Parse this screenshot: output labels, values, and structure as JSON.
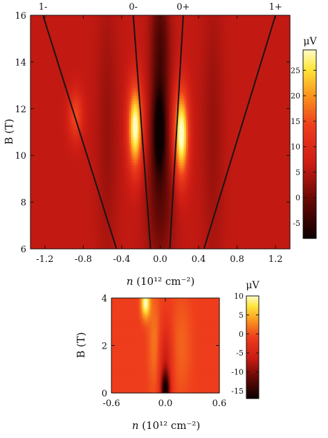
{
  "chart_data": [
    {
      "type": "heatmap",
      "title": "",
      "xlabel_var": "n",
      "xlabel_unit": "(10¹² cm⁻²)",
      "ylabel": "B (T)",
      "xlim": [
        -1.35,
        1.35
      ],
      "ylim": [
        6,
        16
      ],
      "xticks": [
        -1.2,
        -0.8,
        -0.4,
        0.0,
        0.4,
        0.8,
        1.2
      ],
      "xtick_labels": [
        "-1.2",
        "-0.8",
        "-0.4",
        "0.0",
        "0.4",
        "0.8",
        "1.2"
      ],
      "yticks": [
        6,
        8,
        10,
        12,
        14,
        16
      ],
      "ytick_labels": [
        "6",
        "8",
        "10",
        "12",
        "14",
        "16"
      ],
      "colorbar": {
        "unit": "μV",
        "range": [
          -8,
          29
        ],
        "ticks": [
          -5,
          0,
          5,
          10,
          15,
          20,
          25
        ],
        "tick_labels": [
          "-5",
          "0",
          "5",
          "10",
          "15",
          "20",
          "25"
        ]
      },
      "background_value": 6,
      "features": [
        {
          "x": -0.26,
          "y": 11.2,
          "amp": 24,
          "sx": 0.05,
          "sy": 1.2
        },
        {
          "x": 0.22,
          "y": 10.9,
          "amp": 25,
          "sx": 0.05,
          "sy": 1.25
        },
        {
          "x": -0.88,
          "y": 11.7,
          "amp": 9,
          "sx": 0.05,
          "sy": 0.7
        },
        {
          "x": -0.01,
          "y": 11.0,
          "amp": -13,
          "sx": 0.05,
          "sy": 1.3
        },
        {
          "x": 0.0,
          "y": 14.5,
          "amp": -9,
          "sx": 0.07,
          "sy": 2.2
        },
        {
          "x": 0.0,
          "y": 8.0,
          "amp": -7,
          "sx": 0.1,
          "sy": 2.0
        },
        {
          "x": -0.55,
          "y": 11.0,
          "amp": -3,
          "sx": 0.08,
          "sy": 4.0
        },
        {
          "x": 0.55,
          "y": 11.0,
          "amp": -3,
          "sx": 0.08,
          "sy": 4.0
        }
      ],
      "lines": [
        {
          "label": "1-",
          "from": [
            -0.455,
            6
          ],
          "to": [
            -1.22,
            16
          ]
        },
        {
          "label": "0-",
          "from": [
            -0.1,
            6
          ],
          "to": [
            -0.28,
            16
          ]
        },
        {
          "label": "0+",
          "from": [
            0.1,
            6
          ],
          "to": [
            0.24,
            16
          ]
        },
        {
          "label": "1+",
          "from": [
            0.455,
            6
          ],
          "to": [
            1.2,
            16
          ]
        }
      ]
    },
    {
      "type": "heatmap",
      "title": "",
      "xlabel_var": "n",
      "xlabel_unit": "(10¹² cm⁻²)",
      "ylabel": "B (T)",
      "xlim": [
        -0.6,
        0.6
      ],
      "ylim": [
        0,
        4
      ],
      "xticks": [
        -0.6,
        0.0,
        0.6
      ],
      "xtick_labels": [
        "-0.6",
        "0.0",
        "0.6"
      ],
      "yticks": [
        0,
        2,
        4
      ],
      "ytick_labels": [
        "0",
        "2",
        "4"
      ],
      "colorbar": {
        "unit": "μV",
        "range": [
          -17,
          10
        ],
        "ticks": [
          -15,
          -10,
          -5,
          0,
          5,
          10
        ],
        "tick_labels": [
          "-15",
          "-10",
          "-5",
          "0",
          "5",
          "10"
        ]
      },
      "background_value": -1,
      "features": [
        {
          "x": -0.22,
          "y": 3.8,
          "amp": 11,
          "sx": 0.035,
          "sy": 0.45
        },
        {
          "x": 0.0,
          "y": 0.1,
          "amp": -14,
          "sx": 0.035,
          "sy": 0.55
        },
        {
          "x": 0.0,
          "y": 1.2,
          "amp": -5,
          "sx": 0.05,
          "sy": 1.2
        },
        {
          "x": -0.12,
          "y": 2.2,
          "amp": 3,
          "sx": 0.05,
          "sy": 1.5
        },
        {
          "x": 0.18,
          "y": 2.0,
          "amp": 2,
          "sx": 0.08,
          "sy": 1.6
        }
      ]
    }
  ]
}
